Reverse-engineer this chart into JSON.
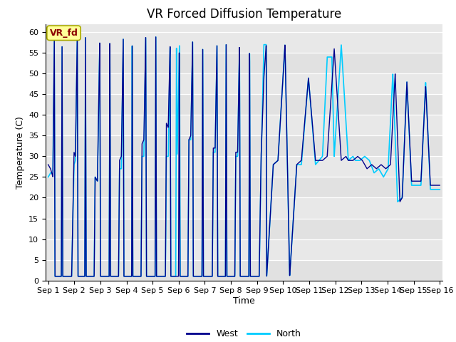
{
  "title": "VR Forced Diffusion Temperature",
  "xlabel": "Time",
  "ylabel": "Temperature (C)",
  "ylim": [
    0,
    62
  ],
  "yticks": [
    0,
    5,
    10,
    15,
    20,
    25,
    30,
    35,
    40,
    45,
    50,
    55,
    60
  ],
  "xtick_labels": [
    "Sep 1",
    "Sep 2",
    "Sep 3",
    "Sep 4",
    "Sep 5",
    "Sep 6",
    "Sep 7",
    "Sep 8",
    "Sep 9",
    "Sep 10",
    "Sep 11",
    "Sep 12",
    "Sep 13",
    "Sep 14",
    "Sep 15",
    "Sep 16"
  ],
  "west_color": "#00008B",
  "north_color": "#00CCFF",
  "bg_color": "#E8E8E8",
  "annotation_bg": "#FFFF99",
  "annotation_text": "VR_fd",
  "annotation_text_color": "#8B0000",
  "legend_west": "West",
  "legend_north": "North",
  "title_fontsize": 12,
  "label_fontsize": 9,
  "tick_fontsize": 8
}
